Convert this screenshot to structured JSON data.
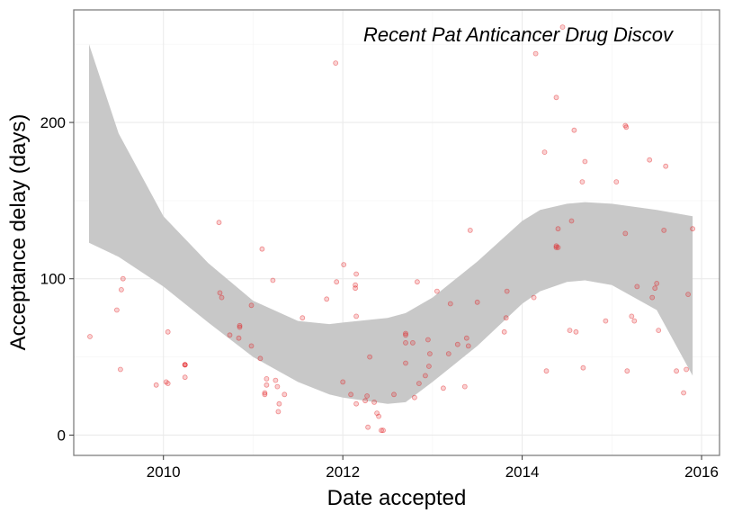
{
  "chart_data": {
    "type": "scatter",
    "title": "Recent Pat Anticancer Drug Discov",
    "xlabel": "Date accepted",
    "ylabel": "Acceptance delay (days)",
    "xlim": [
      2009.0,
      2016.2
    ],
    "ylim": [
      -13,
      272
    ],
    "x_ticks": [
      2010,
      2012,
      2014,
      2016
    ],
    "y_ticks": [
      0,
      100,
      200
    ],
    "x_tick_labels": [
      "2010",
      "2012",
      "2014",
      "2016"
    ],
    "y_tick_labels": [
      "0",
      "100",
      "200"
    ],
    "grid": true,
    "legend": "none",
    "point_color": "#e31a1c",
    "ribbon_color": "#c8c8c8",
    "points": [
      [
        2009.18,
        63
      ],
      [
        2009.48,
        80
      ],
      [
        2009.52,
        42
      ],
      [
        2009.53,
        93
      ],
      [
        2009.55,
        100
      ],
      [
        2009.92,
        32
      ],
      [
        2010.03,
        34
      ],
      [
        2010.05,
        33
      ],
      [
        2010.05,
        66
      ],
      [
        2010.24,
        45
      ],
      [
        2010.24,
        45
      ],
      [
        2010.24,
        45
      ],
      [
        2010.24,
        37
      ],
      [
        2010.62,
        136
      ],
      [
        2010.63,
        91
      ],
      [
        2010.65,
        88
      ],
      [
        2010.74,
        64
      ],
      [
        2010.84,
        62
      ],
      [
        2010.85,
        69
      ],
      [
        2010.85,
        70
      ],
      [
        2010.98,
        83
      ],
      [
        2010.98,
        57
      ],
      [
        2011.08,
        49
      ],
      [
        2011.1,
        119
      ],
      [
        2011.13,
        26
      ],
      [
        2011.13,
        27
      ],
      [
        2011.15,
        32
      ],
      [
        2011.15,
        36
      ],
      [
        2011.22,
        99
      ],
      [
        2011.25,
        35
      ],
      [
        2011.27,
        31
      ],
      [
        2011.28,
        15
      ],
      [
        2011.29,
        20
      ],
      [
        2011.35,
        26
      ],
      [
        2011.55,
        75
      ],
      [
        2011.82,
        87
      ],
      [
        2011.92,
        238
      ],
      [
        2011.93,
        98
      ],
      [
        2012.0,
        34
      ],
      [
        2012.01,
        109
      ],
      [
        2012.09,
        26
      ],
      [
        2012.14,
        94
      ],
      [
        2012.14,
        96
      ],
      [
        2012.15,
        103
      ],
      [
        2012.15,
        76
      ],
      [
        2012.15,
        20
      ],
      [
        2012.25,
        22
      ],
      [
        2012.27,
        25
      ],
      [
        2012.28,
        5
      ],
      [
        2012.3,
        50
      ],
      [
        2012.35,
        21
      ],
      [
        2012.38,
        14
      ],
      [
        2012.4,
        12
      ],
      [
        2012.43,
        3
      ],
      [
        2012.45,
        3
      ],
      [
        2012.57,
        26
      ],
      [
        2012.7,
        65
      ],
      [
        2012.7,
        64
      ],
      [
        2012.7,
        59
      ],
      [
        2012.7,
        46
      ],
      [
        2012.78,
        59
      ],
      [
        2012.8,
        24
      ],
      [
        2012.83,
        98
      ],
      [
        2012.85,
        33
      ],
      [
        2012.92,
        38
      ],
      [
        2012.95,
        61
      ],
      [
        2012.96,
        44
      ],
      [
        2012.97,
        52
      ],
      [
        2013.05,
        92
      ],
      [
        2013.12,
        30
      ],
      [
        2013.18,
        52
      ],
      [
        2013.2,
        84
      ],
      [
        2013.28,
        58
      ],
      [
        2013.36,
        31
      ],
      [
        2013.38,
        62
      ],
      [
        2013.4,
        57
      ],
      [
        2013.42,
        131
      ],
      [
        2013.5,
        85
      ],
      [
        2013.8,
        66
      ],
      [
        2013.82,
        75
      ],
      [
        2013.83,
        92
      ],
      [
        2014.13,
        88
      ],
      [
        2014.15,
        244
      ],
      [
        2014.25,
        181
      ],
      [
        2014.27,
        41
      ],
      [
        2014.38,
        121
      ],
      [
        2014.38,
        120
      ],
      [
        2014.38,
        216
      ],
      [
        2014.4,
        132
      ],
      [
        2014.4,
        120
      ],
      [
        2014.45,
        261
      ],
      [
        2014.53,
        67
      ],
      [
        2014.55,
        137
      ],
      [
        2014.58,
        195
      ],
      [
        2014.6,
        66
      ],
      [
        2014.67,
        162
      ],
      [
        2014.68,
        43
      ],
      [
        2014.7,
        175
      ],
      [
        2014.93,
        73
      ],
      [
        2015.05,
        162
      ],
      [
        2015.15,
        129
      ],
      [
        2015.15,
        198
      ],
      [
        2015.16,
        197
      ],
      [
        2015.17,
        41
      ],
      [
        2015.22,
        76
      ],
      [
        2015.25,
        73
      ],
      [
        2015.28,
        95
      ],
      [
        2015.42,
        176
      ],
      [
        2015.45,
        88
      ],
      [
        2015.48,
        94
      ],
      [
        2015.5,
        97
      ],
      [
        2015.52,
        67
      ],
      [
        2015.58,
        131
      ],
      [
        2015.6,
        172
      ],
      [
        2015.72,
        41
      ],
      [
        2015.8,
        27
      ],
      [
        2015.83,
        42
      ],
      [
        2015.85,
        90
      ],
      [
        2015.9,
        132
      ]
    ],
    "ribbon": {
      "x": [
        2009.17,
        2009.5,
        2010.0,
        2010.5,
        2011.0,
        2011.5,
        2011.85,
        2012.0,
        2012.5,
        2012.7,
        2013.0,
        2013.5,
        2014.0,
        2014.2,
        2014.5,
        2014.7,
        2015.0,
        2015.5,
        2015.9
      ],
      "upper": [
        250,
        193,
        140,
        110,
        86,
        73,
        71,
        72,
        75,
        78,
        88,
        111,
        137,
        144,
        148,
        149,
        148,
        144,
        140
      ],
      "lower": [
        123,
        114,
        95,
        72,
        50,
        34,
        26,
        24,
        20,
        21,
        34,
        57,
        84,
        92,
        98,
        99,
        96,
        80,
        38
      ]
    }
  }
}
